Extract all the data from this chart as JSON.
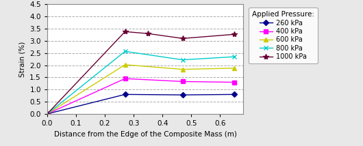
{
  "title": "Applied Pressure:",
  "xlabel": "Distance from the Edge of the Composite Mass (m)",
  "ylabel": "Strain (%)",
  "xlim": [
    0.0,
    0.68
  ],
  "ylim": [
    0.0,
    4.5
  ],
  "xticks": [
    0.0,
    0.1,
    0.2,
    0.3,
    0.4,
    0.5,
    0.6
  ],
  "yticks": [
    0.0,
    0.5,
    1.0,
    1.5,
    2.0,
    2.5,
    3.0,
    3.5,
    4.0,
    4.5
  ],
  "series": [
    {
      "label": "260 kPa",
      "color": "#00008B",
      "marker": "D",
      "markersize": 4,
      "x": [
        0.0,
        0.27,
        0.47,
        0.65
      ],
      "y": [
        0.0,
        0.8,
        0.78,
        0.8
      ]
    },
    {
      "label": "400 kPa",
      "color": "#FF00FF",
      "marker": "s",
      "markersize": 4,
      "x": [
        0.0,
        0.27,
        0.47,
        0.65
      ],
      "y": [
        0.0,
        1.45,
        1.33,
        1.3
      ]
    },
    {
      "label": "600 kPa",
      "color": "#CCCC00",
      "marker": "^",
      "markersize": 5,
      "x": [
        0.0,
        0.27,
        0.47,
        0.65
      ],
      "y": [
        0.0,
        2.02,
        1.83,
        1.88
      ]
    },
    {
      "label": "800 kPa",
      "color": "#00CCCC",
      "marker": "x",
      "markersize": 5,
      "x": [
        0.0,
        0.27,
        0.47,
        0.65
      ],
      "y": [
        0.0,
        2.57,
        2.22,
        2.35
      ]
    },
    {
      "label": "1000 kPa",
      "color": "#660033",
      "marker": "*",
      "markersize": 6,
      "x": [
        0.0,
        0.27,
        0.35,
        0.47,
        0.65
      ],
      "y": [
        0.0,
        3.38,
        3.3,
        3.1,
        3.27
      ]
    }
  ],
  "figsize": [
    5.3,
    2.14
  ],
  "dpi": 100,
  "bg_color": "#e8e8e8",
  "plot_bg_color": "#ffffff",
  "grid_color": "#aaaaaa",
  "linewidth": 1.0
}
